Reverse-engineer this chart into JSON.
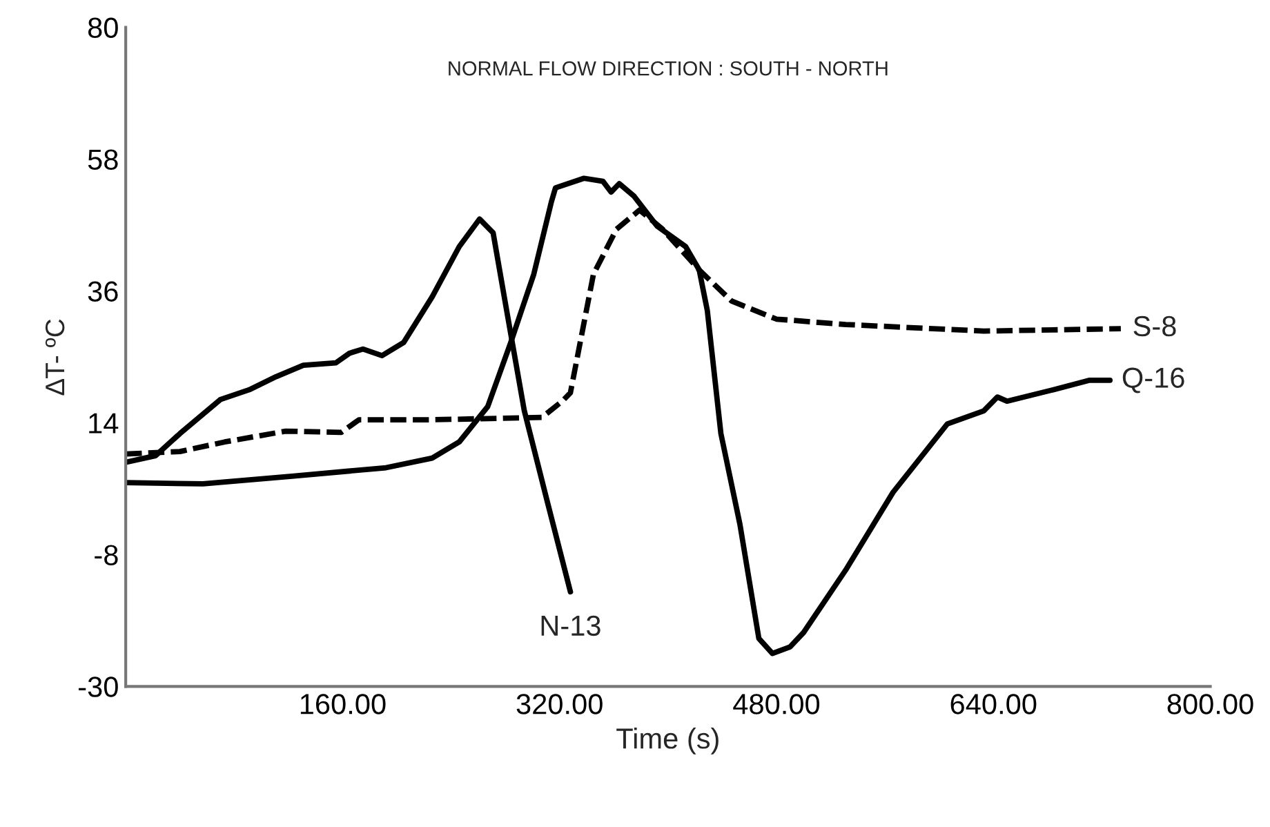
{
  "chart_data": {
    "type": "line",
    "title": "NORMAL FLOW DIRECTION : SOUTH - NORTH",
    "xlabel": "Time (s)",
    "ylabel": "∆T- ºC",
    "xlim": [
      0,
      800
    ],
    "xticks": [
      {
        "value": 160,
        "label": "160.00"
      },
      {
        "value": 320,
        "label": "320.00"
      },
      {
        "value": 480,
        "label": "480.00"
      },
      {
        "value": 640,
        "label": "640.00"
      },
      {
        "value": 800,
        "label": "800.00"
      }
    ],
    "ylim": [
      -30,
      80
    ],
    "yticks": [
      -30,
      -8,
      14,
      36,
      58,
      80
    ],
    "grid": false,
    "legend": false,
    "marker": "none",
    "series": [
      {
        "name": "N-13",
        "color": "#000000",
        "line_style": "solid",
        "x": [
          0,
          22,
          40,
          70,
          91,
          111,
          131,
          155,
          165,
          175,
          189,
          205,
          226,
          246,
          261,
          271,
          281,
          294,
          311,
          328
        ],
        "values": [
          7.4,
          8.5,
          12.2,
          17.9,
          19.5,
          21.7,
          23.6,
          24,
          25.6,
          26.3,
          25.2,
          27.4,
          35,
          43.4,
          48,
          45.7,
          32.7,
          16,
          0.8,
          -14.2
        ]
      },
      {
        "name": "S-8",
        "color": "#000000",
        "line_style": "dashed",
        "x": [
          0,
          40,
          73,
          118,
          159,
          172,
          226,
          307,
          322,
          328,
          345,
          362,
          379,
          396,
          423,
          447,
          480,
          531,
          633,
          734
        ],
        "values": [
          8.8,
          9.2,
          10.8,
          12.6,
          12.4,
          14.5,
          14.5,
          14.9,
          17.6,
          19,
          38.8,
          46.3,
          49.5,
          46.3,
          39.5,
          34.3,
          31.3,
          30.4,
          29.3,
          29.7
        ]
      },
      {
        "name": "Q-16",
        "color": "#000000",
        "line_style": "solid",
        "x": [
          0,
          57,
          124,
          192,
          226,
          246,
          267,
          284,
          301,
          314,
          317,
          338,
          352,
          358,
          364,
          375,
          392,
          413,
          423,
          429,
          439,
          453,
          467,
          477,
          490,
          500,
          531,
          566,
          606,
          633,
          643,
          650,
          684,
          711,
          726
        ],
        "values": [
          4,
          3.8,
          5.1,
          6.5,
          8.1,
          10.8,
          16.7,
          27.4,
          38.8,
          50.9,
          53.2,
          54.8,
          54.3,
          52.5,
          53.9,
          51.8,
          46.8,
          43.4,
          39.5,
          32.7,
          12.2,
          -2.9,
          -22,
          -24.5,
          -23.4,
          -21,
          -10.6,
          2.4,
          13.8,
          16,
          18.3,
          17.6,
          19.5,
          21.1,
          21.1
        ]
      }
    ]
  }
}
